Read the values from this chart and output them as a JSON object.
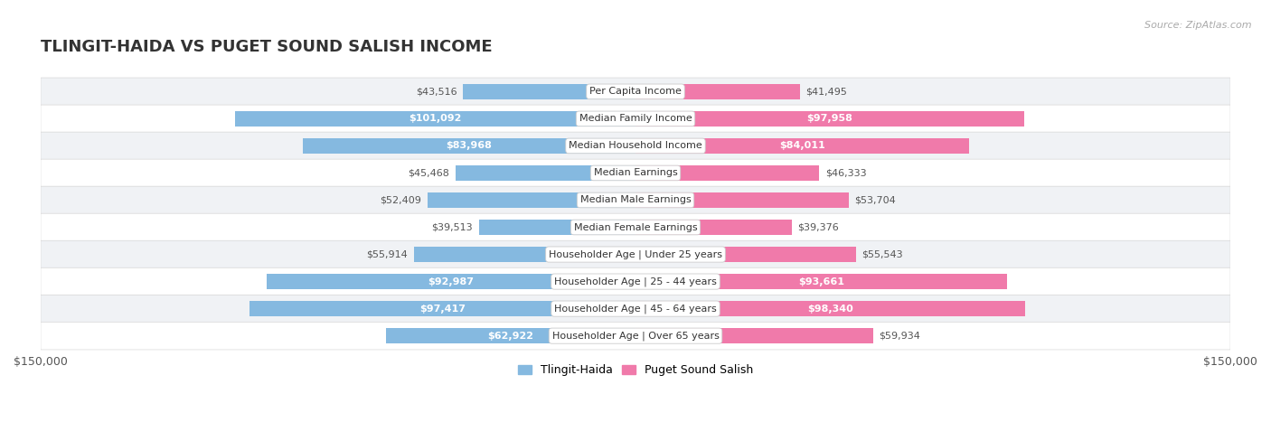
{
  "title": "TLINGIT-HAIDA VS PUGET SOUND SALISH INCOME",
  "source": "Source: ZipAtlas.com",
  "categories": [
    "Per Capita Income",
    "Median Family Income",
    "Median Household Income",
    "Median Earnings",
    "Median Male Earnings",
    "Median Female Earnings",
    "Householder Age | Under 25 years",
    "Householder Age | 25 - 44 years",
    "Householder Age | 45 - 64 years",
    "Householder Age | Over 65 years"
  ],
  "tlingit_values": [
    43516,
    101092,
    83968,
    45468,
    52409,
    39513,
    55914,
    92987,
    97417,
    62922
  ],
  "salish_values": [
    41495,
    97958,
    84011,
    46333,
    53704,
    39376,
    55543,
    93661,
    98340,
    59934
  ],
  "tlingit_labels": [
    "$43,516",
    "$101,092",
    "$83,968",
    "$45,468",
    "$52,409",
    "$39,513",
    "$55,914",
    "$92,987",
    "$97,417",
    "$62,922"
  ],
  "salish_labels": [
    "$41,495",
    "$97,958",
    "$84,011",
    "$46,333",
    "$53,704",
    "$39,376",
    "$55,543",
    "$93,661",
    "$98,340",
    "$59,934"
  ],
  "tlingit_color": "#85b9e0",
  "salish_color": "#f07aaa",
  "row_bg_odd": "#f0f2f5",
  "row_bg_even": "#ffffff",
  "max_value": 150000,
  "bar_height": 0.58,
  "title_fontsize": 13,
  "label_fontsize": 8.0,
  "category_fontsize": 8.0,
  "legend_fontsize": 9,
  "source_fontsize": 8,
  "inside_label_threshold": 60000
}
